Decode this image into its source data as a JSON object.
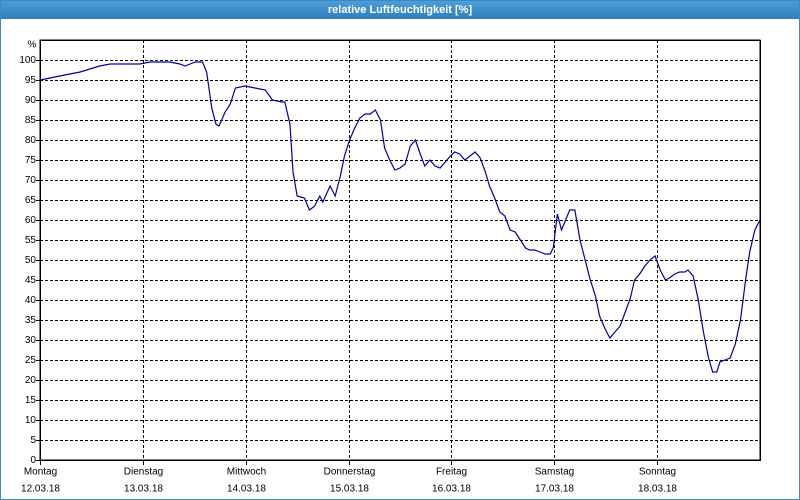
{
  "chart_data": {
    "type": "line",
    "title": "relative Luftfeuchtigkeit [%]",
    "ylabel": "%",
    "xlim": [
      0,
      7
    ],
    "ylim": [
      0,
      105
    ],
    "yticks": [
      0,
      5,
      10,
      15,
      20,
      25,
      30,
      35,
      40,
      45,
      50,
      55,
      60,
      65,
      70,
      75,
      80,
      85,
      90,
      95,
      100
    ],
    "xticks": [
      {
        "value": 0,
        "label": "Montag",
        "date": "12.03.18"
      },
      {
        "value": 1,
        "label": "Dienstag",
        "date": "13.03.18"
      },
      {
        "value": 2,
        "label": "Mittwoch",
        "date": "14.03.18"
      },
      {
        "value": 3,
        "label": "Donnerstag",
        "date": "15.03.18"
      },
      {
        "value": 4,
        "label": "Freitag",
        "date": "16.03.18"
      },
      {
        "value": 5,
        "label": "Samstag",
        "date": "17.03.18"
      },
      {
        "value": 6,
        "label": "Sonntag",
        "date": "18.03.18"
      }
    ],
    "grid": true,
    "x": [
      0,
      0.1,
      0.19,
      0.39,
      0.58,
      0.68,
      0.97,
      1.07,
      1.26,
      1.36,
      1.41,
      1.51,
      1.58,
      1.62,
      1.67,
      1.71,
      1.74,
      1.8,
      1.85,
      1.9,
      1.99,
      2.09,
      2.19,
      2.26,
      2.35,
      2.38,
      2.43,
      2.46,
      2.5,
      2.57,
      2.62,
      2.67,
      2.72,
      2.75,
      2.82,
      2.87,
      2.92,
      2.96,
      3.01,
      3.06,
      3.11,
      3.16,
      3.21,
      3.26,
      3.31,
      3.35,
      3.4,
      3.45,
      3.5,
      3.55,
      3.6,
      3.65,
      3.69,
      3.74,
      3.79,
      3.84,
      3.89,
      3.94,
      3.99,
      4.03,
      4.08,
      4.13,
      4.18,
      4.23,
      4.28,
      4.33,
      4.37,
      4.42,
      4.47,
      4.52,
      4.57,
      4.62,
      4.67,
      4.72,
      4.76,
      4.81,
      4.86,
      4.91,
      4.96,
      4.99,
      5.03,
      5.07,
      5.15,
      5.2,
      5.25,
      5.3,
      5.35,
      5.4,
      5.44,
      5.49,
      5.54,
      5.59,
      5.64,
      5.69,
      5.74,
      5.78,
      5.83,
      5.88,
      5.93,
      5.98,
      6.03,
      6.08,
      6.12,
      6.17,
      6.22,
      6.27,
      6.3,
      6.35,
      6.4,
      6.45,
      6.5,
      6.54,
      6.58,
      6.61,
      6.66,
      6.71,
      6.76,
      6.81,
      6.86,
      6.9,
      6.95,
      7.0
    ],
    "series": [
      {
        "color": "#0000a0",
        "values": [
          95,
          95.5,
          96,
          97,
          98.5,
          99,
          99,
          99.5,
          99.5,
          99,
          98.5,
          99.5,
          99.5,
          97,
          88,
          84,
          83.5,
          87,
          89,
          93,
          93.5,
          93,
          92.5,
          90,
          89.5,
          89.5,
          84,
          72,
          66,
          65.5,
          62.5,
          63.5,
          66,
          64.5,
          68.5,
          66,
          71,
          76,
          80,
          83,
          85.5,
          86.5,
          86.5,
          87.5,
          85,
          78,
          75,
          72.5,
          73,
          74,
          78.5,
          80,
          77,
          73.5,
          75,
          73.5,
          73,
          74.5,
          76,
          77,
          76.5,
          75,
          76,
          77,
          75.5,
          72,
          68.5,
          65.5,
          62,
          61,
          57.5,
          57,
          55,
          53,
          52.5,
          52.5,
          52,
          51.5,
          51.5,
          53,
          61.5,
          57.5,
          62.5,
          62.5,
          55,
          50,
          45,
          41,
          36,
          33,
          30.5,
          32,
          33.5,
          37,
          40.5,
          45,
          46.5,
          48.5,
          50,
          51,
          47.5,
          45,
          45.5,
          46.5,
          47,
          47,
          47.5,
          46,
          40,
          32,
          25.5,
          22,
          22,
          24.5,
          25,
          25.5,
          29,
          35,
          45,
          52,
          57.5,
          60
        ]
      }
    ]
  }
}
